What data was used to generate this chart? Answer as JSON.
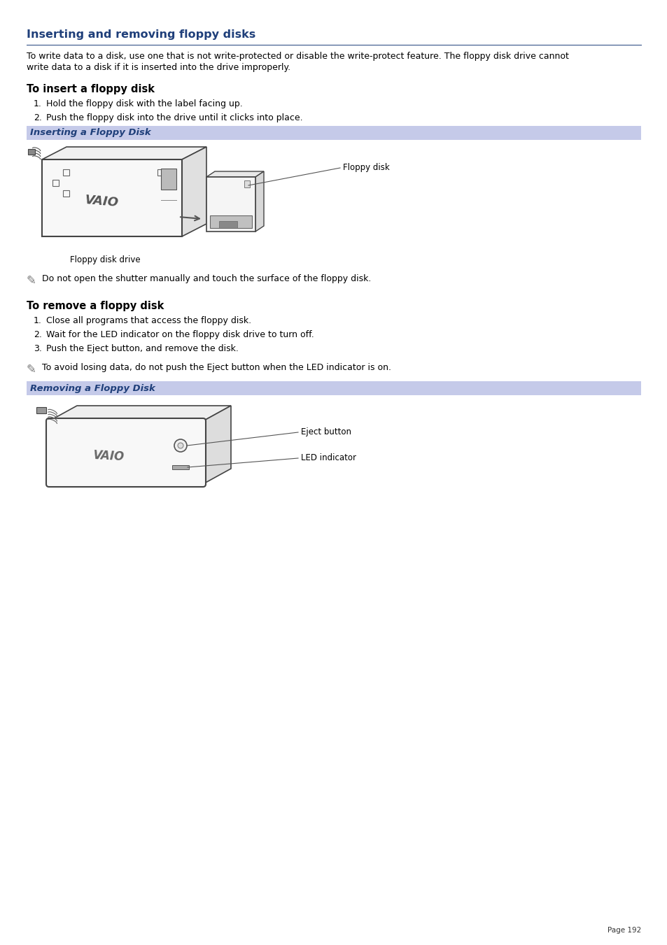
{
  "title": "Inserting and removing floppy disks",
  "title_color": "#1f3f7a",
  "background_color": "#ffffff",
  "page_number": "Page 192",
  "intro_line1": "To write data to a disk, use one that is not write-protected or disable the write-protect feature. The floppy disk drive cannot",
  "intro_line2": "write data to a disk if it is inserted into the drive improperly.",
  "section1_title": "To insert a floppy disk",
  "step1_1": "Hold the floppy disk with the label facing up.",
  "step1_2": "Push the floppy disk into the drive until it clicks into place.",
  "caption1": "Inserting a Floppy Disk",
  "caption1_bg": "#c5cae9",
  "note1": "Do not open the shutter manually and touch the surface of the floppy disk.",
  "section2_title": "To remove a floppy disk",
  "step2_1": "Close all programs that access the floppy disk.",
  "step2_2": "Wait for the LED indicator on the floppy disk drive to turn off.",
  "step2_3": "Push the Eject button, and remove the disk.",
  "note2": "To avoid losing data, do not push the Eject button when the LED indicator is on.",
  "caption2": "Removing a Floppy Disk",
  "caption2_bg": "#c5cae9",
  "label_floppy_disk": "Floppy disk",
  "label_floppy_drive": "Floppy disk drive",
  "label_eject": "Eject button",
  "label_led": "LED indicator"
}
